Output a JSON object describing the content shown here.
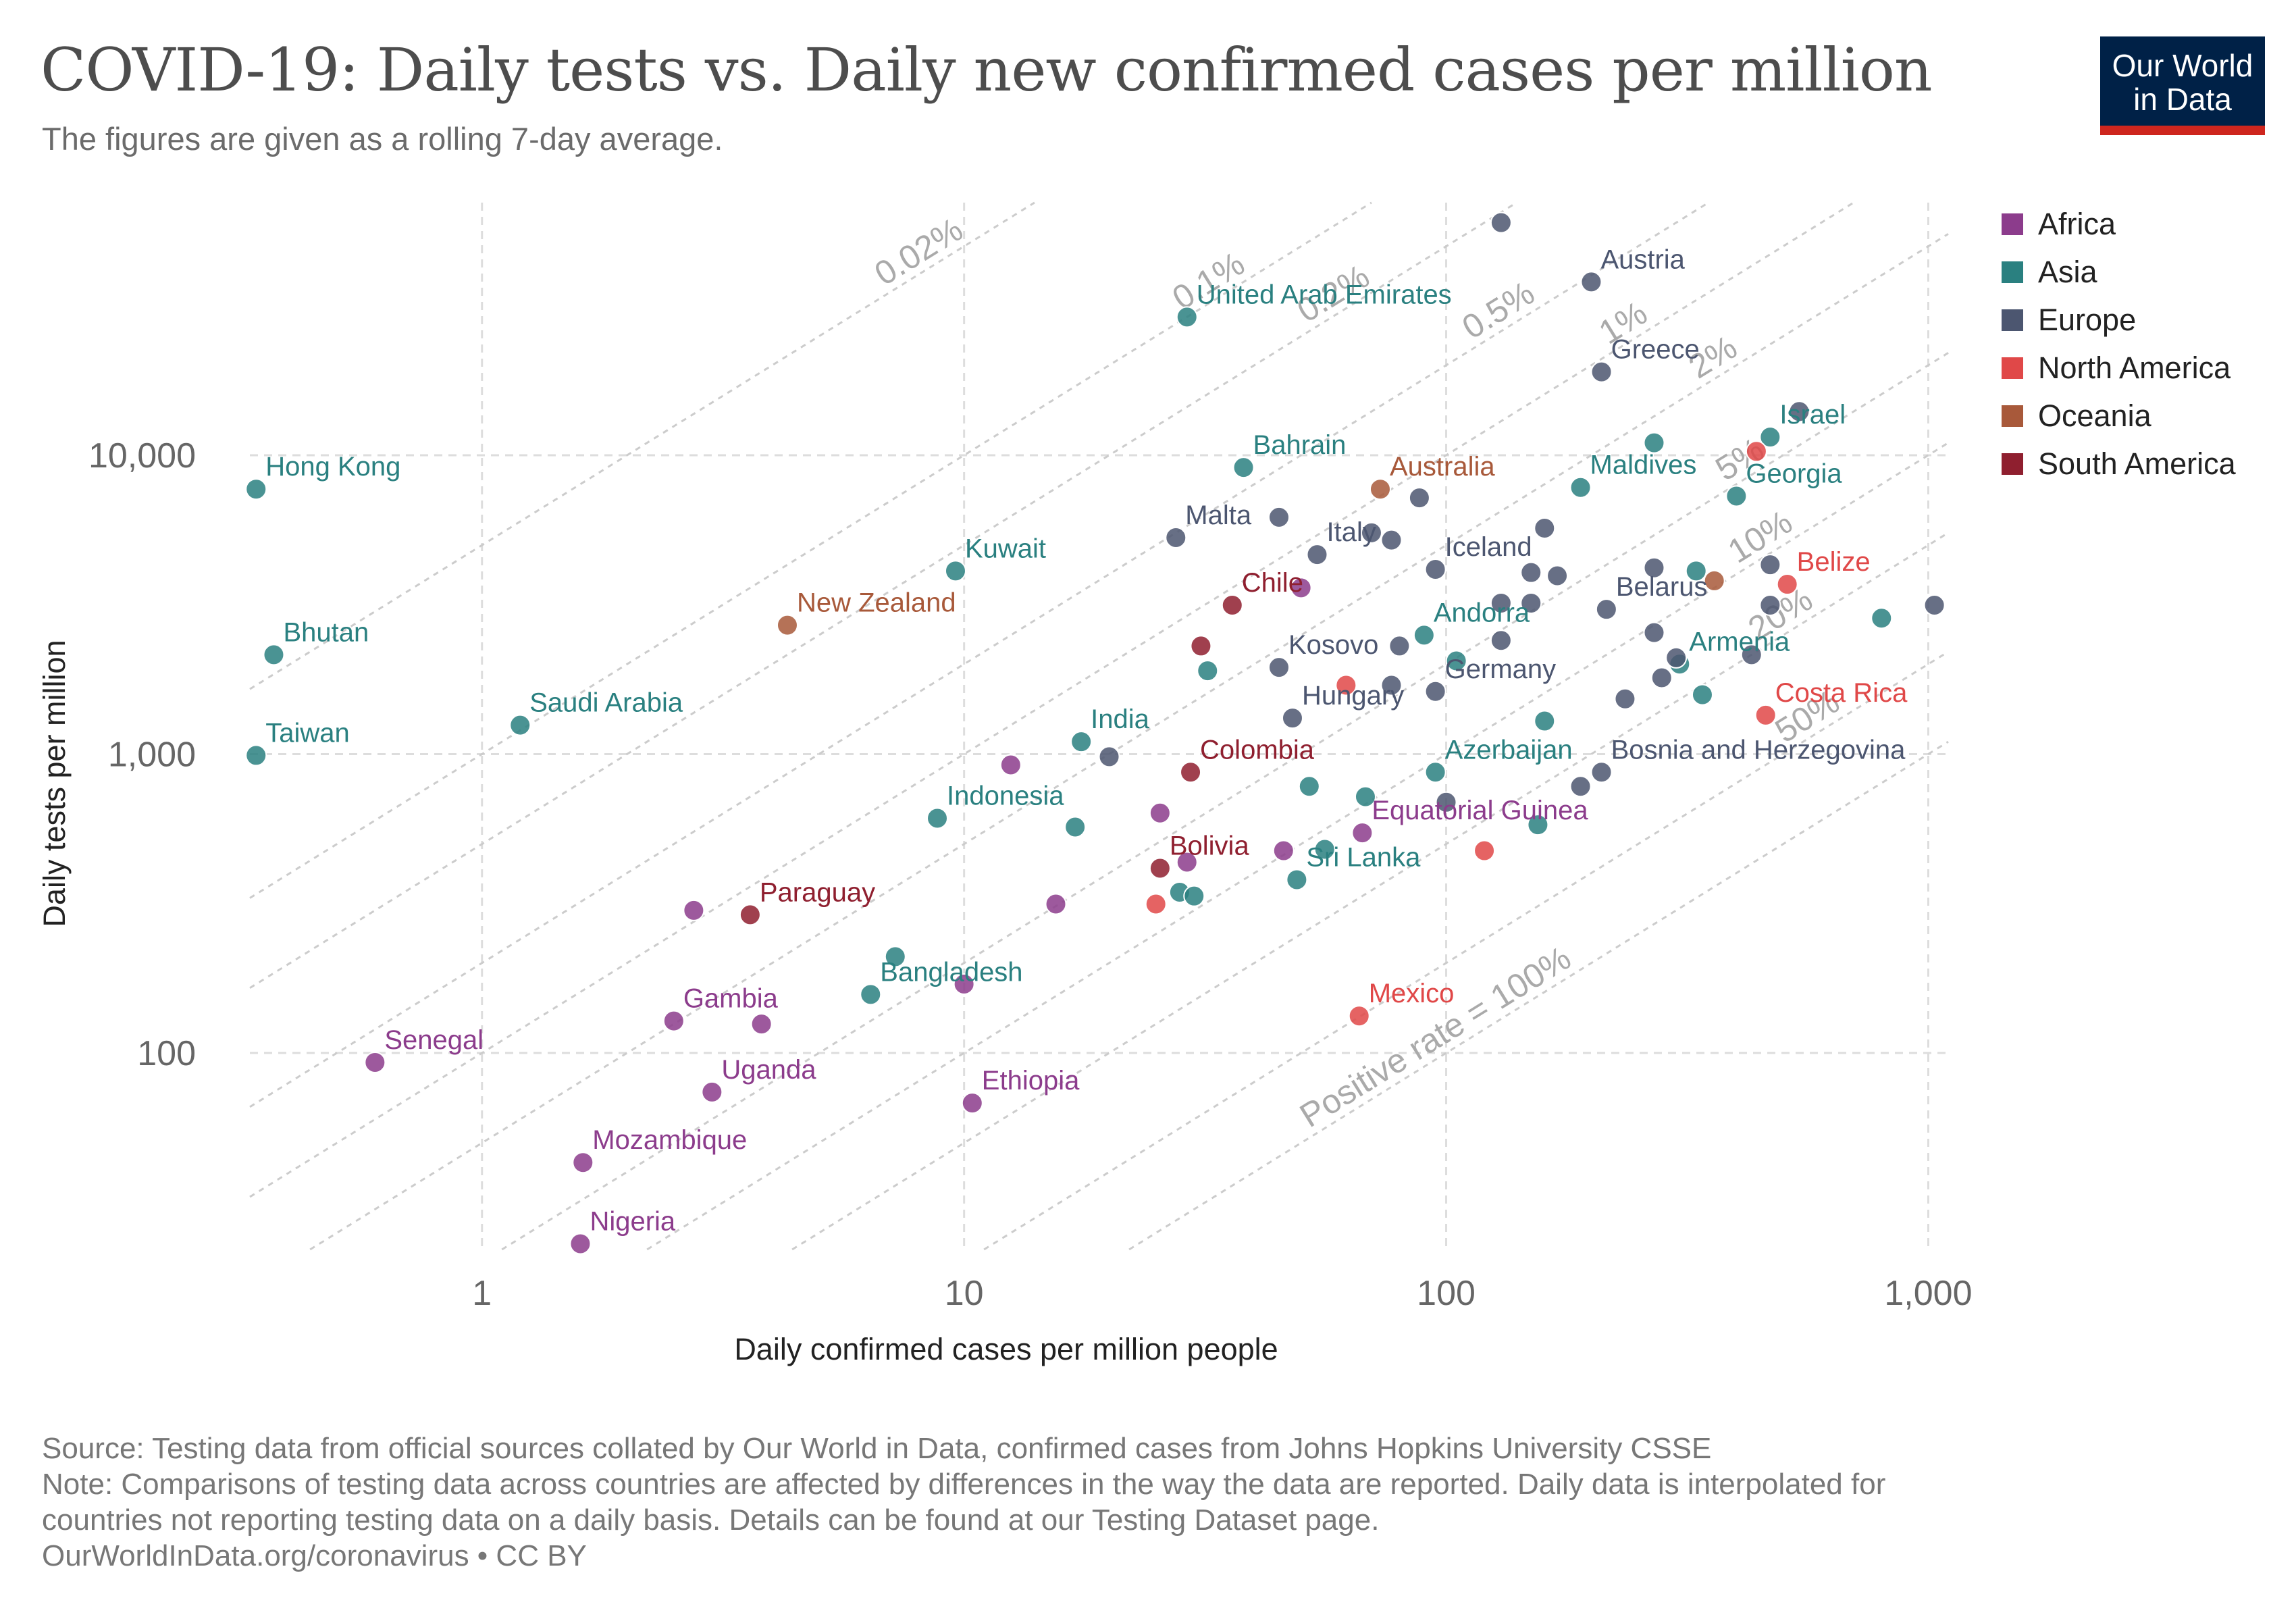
{
  "title": "COVID-19: Daily tests vs. Daily new confirmed cases per million",
  "subtitle": "The figures are given as a rolling 7-day average.",
  "logo": {
    "line1": "Our World",
    "line2": "in Data"
  },
  "legend": [
    {
      "name": "Africa",
      "color": "#8c3c8c"
    },
    {
      "name": "Asia",
      "color": "#2a8080"
    },
    {
      "name": "Europe",
      "color": "#4c5670"
    },
    {
      "name": "North America",
      "color": "#e04848"
    },
    {
      "name": "Oceania",
      "color": "#a8593a"
    },
    {
      "name": "South America",
      "color": "#8f1f2f"
    }
  ],
  "footer": {
    "source": "Source: Testing data from official sources collated by Our World in Data, confirmed cases from Johns Hopkins University CSSE",
    "note1": "Note: Comparisons of testing data across countries are affected by differences in the way the data are reported. Daily data is interpolated for",
    "note2": "countries not reporting testing data on a daily basis. Details can be found at our Testing Dataset page.",
    "url": "OurWorldInData.org/coronavirus • CC BY"
  },
  "chart_data": {
    "type": "scatter",
    "xlabel": "Daily confirmed cases per million people",
    "ylabel": "Daily tests per million",
    "x_scale": "log",
    "y_scale": "log",
    "xlim": [
      0.33,
      1100
    ],
    "ylim": [
      22,
      70000
    ],
    "x_ticks": [
      {
        "value": 1,
        "label": "1"
      },
      {
        "value": 10,
        "label": "10"
      },
      {
        "value": 100,
        "label": "100"
      },
      {
        "value": 1000,
        "label": "1,000"
      }
    ],
    "y_ticks": [
      {
        "value": 100,
        "label": "100"
      },
      {
        "value": 1000,
        "label": "1,000"
      },
      {
        "value": 10000,
        "label": "10,000"
      }
    ],
    "grid": true,
    "legend_placement": "right",
    "positive_rate_lines": [
      {
        "rate": 0.0002,
        "label": "0.02%"
      },
      {
        "rate": 0.001,
        "label": "0.1%"
      },
      {
        "rate": 0.002,
        "label": "0.2%"
      },
      {
        "rate": 0.005,
        "label": "0.5%"
      },
      {
        "rate": 0.01,
        "label": "1%"
      },
      {
        "rate": 0.02,
        "label": "2%"
      },
      {
        "rate": 0.05,
        "label": "5%"
      },
      {
        "rate": 0.1,
        "label": "10%"
      },
      {
        "rate": 0.2,
        "label": "20%"
      },
      {
        "rate": 0.5,
        "label": "50%"
      },
      {
        "rate": 1.0,
        "label": "Positive rate = 100%"
      }
    ],
    "points": [
      {
        "label": "Hong Kong",
        "region": "Asia",
        "x": 0.34,
        "y": 7700
      },
      {
        "label": "Bhutan",
        "region": "Asia",
        "x": 0.37,
        "y": 2150
      },
      {
        "label": "Taiwan",
        "region": "Asia",
        "x": 0.34,
        "y": 990
      },
      {
        "label": "Saudi Arabia",
        "region": "Asia",
        "x": 1.2,
        "y": 1250
      },
      {
        "label": "Senegal",
        "region": "Africa",
        "x": 0.6,
        "y": 93
      },
      {
        "label": "Mozambique",
        "region": "Africa",
        "x": 1.62,
        "y": 43
      },
      {
        "label": "Nigeria",
        "region": "Africa",
        "x": 1.6,
        "y": 23
      },
      {
        "label": "Gambia",
        "region": "Africa",
        "x": 2.5,
        "y": 128
      },
      {
        "label": "Uganda",
        "region": "Africa",
        "x": 3.0,
        "y": 74
      },
      {
        "label": "Paraguay",
        "region": "South America",
        "x": 3.6,
        "y": 290
      },
      {
        "label": "New Zealand",
        "region": "Oceania",
        "x": 4.3,
        "y": 2700
      },
      {
        "label": "Bangladesh",
        "region": "Asia",
        "x": 6.4,
        "y": 157
      },
      {
        "label": "Indonesia",
        "region": "Asia",
        "x": 8.8,
        "y": 610
      },
      {
        "label": "Kuwait",
        "region": "Asia",
        "x": 9.6,
        "y": 4100
      },
      {
        "label": "Ethiopia",
        "region": "Africa",
        "x": 10.4,
        "y": 68
      },
      {
        "label": "India",
        "region": "Asia",
        "x": 17.5,
        "y": 1100
      },
      {
        "label": "United Arab Emirates",
        "region": "Asia",
        "x": 29,
        "y": 29000
      },
      {
        "label": "Colombia",
        "region": "South America",
        "x": 29.5,
        "y": 870
      },
      {
        "label": "Bolivia",
        "region": "South America",
        "x": 25.5,
        "y": 415
      },
      {
        "label": "Malta",
        "region": "Europe",
        "x": 27.5,
        "y": 5300
      },
      {
        "label": "Chile",
        "region": "South America",
        "x": 36,
        "y": 3150
      },
      {
        "label": "Bahrain",
        "region": "Asia",
        "x": 38,
        "y": 9100
      },
      {
        "label": "Kosovo",
        "region": "Europe",
        "x": 45,
        "y": 1950
      },
      {
        "label": "Hungary",
        "region": "Europe",
        "x": 48,
        "y": 1320
      },
      {
        "label": "Sri Lanka",
        "region": "Asia",
        "x": 49,
        "y": 380
      },
      {
        "label": "Italy",
        "region": "Europe",
        "x": 54,
        "y": 4650
      },
      {
        "label": "Mexico",
        "region": "North America",
        "x": 66,
        "y": 133
      },
      {
        "label": "Equatorial Guinea",
        "region": "Africa",
        "x": 67,
        "y": 545
      },
      {
        "label": "Australia",
        "region": "Oceania",
        "x": 73,
        "y": 7700
      },
      {
        "label": "Andorra",
        "region": "Asia",
        "x": 90,
        "y": 2500
      },
      {
        "label": "Germany",
        "region": "Europe",
        "x": 95,
        "y": 1620
      },
      {
        "label": "Iceland",
        "region": "Europe",
        "x": 95,
        "y": 4150
      },
      {
        "label": "Azerbaijan",
        "region": "Asia",
        "x": 95,
        "y": 870
      },
      {
        "label": "Maldives",
        "region": "Asia",
        "x": 190,
        "y": 7800
      },
      {
        "label": "Austria",
        "region": "Europe",
        "x": 200,
        "y": 38000
      },
      {
        "label": "Greece",
        "region": "Europe",
        "x": 210,
        "y": 19000
      },
      {
        "label": "Bosnia and Herzegovina",
        "region": "Europe",
        "x": 210,
        "y": 870
      },
      {
        "label": "Belarus",
        "region": "Europe",
        "x": 215,
        "y": 3050
      },
      {
        "label": "Armenia",
        "region": "Asia",
        "x": 305,
        "y": 2000
      },
      {
        "label": "Georgia",
        "region": "Asia",
        "x": 400,
        "y": 7300
      },
      {
        "label": "Israel",
        "region": "Asia",
        "x": 470,
        "y": 11500
      },
      {
        "label": "Belize",
        "region": "North America",
        "x": 510,
        "y": 3700
      },
      {
        "label": "Costa Rica",
        "region": "North America",
        "x": 460,
        "y": 1350
      },
      {
        "label": "",
        "region": "Europe",
        "x": 130,
        "y": 60000
      },
      {
        "label": "",
        "region": "Europe",
        "x": 540,
        "y": 14000
      },
      {
        "label": "",
        "region": "North America",
        "x": 440,
        "y": 10300
      },
      {
        "label": "",
        "region": "Asia",
        "x": 270,
        "y": 11000
      },
      {
        "label": "",
        "region": "Europe",
        "x": 88,
        "y": 7200
      },
      {
        "label": "",
        "region": "Europe",
        "x": 45,
        "y": 6200
      },
      {
        "label": "",
        "region": "Europe",
        "x": 70,
        "y": 5500
      },
      {
        "label": "",
        "region": "Europe",
        "x": 77,
        "y": 5200
      },
      {
        "label": "",
        "region": "Europe",
        "x": 160,
        "y": 5700
      },
      {
        "label": "",
        "region": "Europe",
        "x": 270,
        "y": 4200
      },
      {
        "label": "",
        "region": "Europe",
        "x": 150,
        "y": 4050
      },
      {
        "label": "",
        "region": "Europe",
        "x": 170,
        "y": 3950
      },
      {
        "label": "",
        "region": "Asia",
        "x": 330,
        "y": 4100
      },
      {
        "label": "",
        "region": "Europe",
        "x": 470,
        "y": 4300
      },
      {
        "label": "",
        "region": "Oceania",
        "x": 360,
        "y": 3800
      },
      {
        "label": "",
        "region": "Africa",
        "x": 50,
        "y": 3600
      },
      {
        "label": "",
        "region": "Europe",
        "x": 130,
        "y": 3200
      },
      {
        "label": "",
        "region": "Europe",
        "x": 150,
        "y": 3200
      },
      {
        "label": "",
        "region": "Europe",
        "x": 470,
        "y": 3150
      },
      {
        "label": "",
        "region": "Asia",
        "x": 800,
        "y": 2850
      },
      {
        "label": "",
        "region": "Europe",
        "x": 1030,
        "y": 3150
      },
      {
        "label": "",
        "region": "Europe",
        "x": 270,
        "y": 2550
      },
      {
        "label": "",
        "region": "Europe",
        "x": 130,
        "y": 2400
      },
      {
        "label": "",
        "region": "Europe",
        "x": 80,
        "y": 2300
      },
      {
        "label": "",
        "region": "Asia",
        "x": 105,
        "y": 2050
      },
      {
        "label": "",
        "region": "Europe",
        "x": 430,
        "y": 2150
      },
      {
        "label": "",
        "region": "Europe",
        "x": 300,
        "y": 2100
      },
      {
        "label": "",
        "region": "Asia",
        "x": 32,
        "y": 1900
      },
      {
        "label": "",
        "region": "South America",
        "x": 31,
        "y": 2300
      },
      {
        "label": "",
        "region": "North America",
        "x": 62,
        "y": 1700
      },
      {
        "label": "",
        "region": "Europe",
        "x": 77,
        "y": 1700
      },
      {
        "label": "",
        "region": "Europe",
        "x": 280,
        "y": 1800
      },
      {
        "label": "",
        "region": "Asia",
        "x": 340,
        "y": 1580
      },
      {
        "label": "",
        "region": "Europe",
        "x": 235,
        "y": 1530
      },
      {
        "label": "",
        "region": "Asia",
        "x": 160,
        "y": 1290
      },
      {
        "label": "",
        "region": "Europe",
        "x": 20,
        "y": 980
      },
      {
        "label": "",
        "region": "Africa",
        "x": 12.5,
        "y": 920
      },
      {
        "label": "",
        "region": "Asia",
        "x": 52,
        "y": 780
      },
      {
        "label": "",
        "region": "Europe",
        "x": 190,
        "y": 780
      },
      {
        "label": "",
        "region": "Asia",
        "x": 68,
        "y": 720
      },
      {
        "label": "",
        "region": "Europe",
        "x": 100,
        "y": 690
      },
      {
        "label": "",
        "region": "Africa",
        "x": 25.5,
        "y": 635
      },
      {
        "label": "",
        "region": "Asia",
        "x": 17,
        "y": 570
      },
      {
        "label": "",
        "region": "Asia",
        "x": 155,
        "y": 580
      },
      {
        "label": "",
        "region": "Africa",
        "x": 46,
        "y": 475
      },
      {
        "label": "",
        "region": "North America",
        "x": 120,
        "y": 475
      },
      {
        "label": "",
        "region": "Africa",
        "x": 29,
        "y": 435
      },
      {
        "label": "",
        "region": "Asia",
        "x": 56,
        "y": 480
      },
      {
        "label": "",
        "region": "Asia",
        "x": 28,
        "y": 345
      },
      {
        "label": "",
        "region": "Asia",
        "x": 30,
        "y": 335
      },
      {
        "label": "",
        "region": "North America",
        "x": 25,
        "y": 315
      },
      {
        "label": "",
        "region": "Africa",
        "x": 15.5,
        "y": 315
      },
      {
        "label": "",
        "region": "Africa",
        "x": 2.75,
        "y": 300
      },
      {
        "label": "",
        "region": "Asia",
        "x": 7.2,
        "y": 210
      },
      {
        "label": "",
        "region": "Africa",
        "x": 10,
        "y": 170
      },
      {
        "label": "",
        "region": "Africa",
        "x": 3.8,
        "y": 125
      }
    ]
  }
}
